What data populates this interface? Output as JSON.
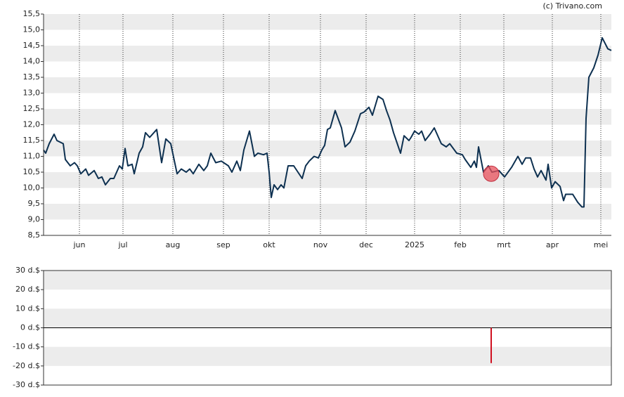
{
  "chart_data": [
    {
      "type": "line",
      "source": "(c) Trivano.com",
      "x": [
        0,
        3,
        8,
        15,
        19,
        28,
        31,
        38,
        44,
        48,
        53,
        60,
        64,
        72,
        78,
        83,
        88,
        95,
        100,
        108,
        112,
        116,
        120,
        126,
        129,
        136,
        141,
        145,
        151,
        161,
        168,
        174,
        181,
        190,
        196,
        203,
        208,
        213,
        221,
        228,
        233,
        238,
        245,
        253,
        263,
        268,
        275,
        280,
        285,
        293,
        300,
        305,
        313,
        318,
        321,
        324,
        328,
        333,
        338,
        342,
        348,
        356,
        362,
        368,
        373,
        378,
        385,
        391,
        396,
        400,
        404,
        408,
        415,
        424,
        429,
        436,
        443,
        451,
        456,
        463,
        468,
        476,
        483,
        488,
        493,
        498,
        508,
        513,
        520,
        523,
        528,
        534,
        538,
        543,
        550,
        556,
        566,
        573,
        578,
        588,
        596,
        600,
        608,
        613,
        616,
        619,
        626,
        633,
        638,
        648,
        656,
        666,
        675,
        681,
        686,
        693,
        698,
        703,
        708,
        715,
        718,
        723,
        728,
        735,
        740,
        743,
        753,
        760,
        766,
        769,
        772,
        776,
        783,
        789,
        795,
        803,
        808
      ],
      "series": [
        {
          "color": "#0d3050",
          "values": [
            11.2,
            11.1,
            11.4,
            11.7,
            11.5,
            11.4,
            10.9,
            10.7,
            10.8,
            10.7,
            10.45,
            10.6,
            10.4,
            10.55,
            10.3,
            10.35,
            10.1,
            10.3,
            10.3,
            10.7,
            10.6,
            11.25,
            10.7,
            10.75,
            10.45,
            11.1,
            11.3,
            11.75,
            11.6,
            11.85,
            10.8,
            11.55,
            11.4,
            10.45,
            10.6,
            10.5,
            10.6,
            10.45,
            10.75,
            10.55,
            10.7,
            11.1,
            10.8,
            10.85,
            10.7,
            10.5,
            10.85,
            10.55,
            11.2,
            11.8,
            11.0,
            11.1,
            11.05,
            11.1,
            10.5,
            9.7,
            10.1,
            9.95,
            10.1,
            10.0,
            10.7,
            10.7,
            10.5,
            10.3,
            10.7,
            10.85,
            11.0,
            10.95,
            11.2,
            11.35,
            11.85,
            11.9,
            12.45,
            11.9,
            11.3,
            11.45,
            11.8,
            12.35,
            12.4,
            12.55,
            12.3,
            12.9,
            12.8,
            12.45,
            12.15,
            11.75,
            11.1,
            11.65,
            11.5,
            11.6,
            11.8,
            11.7,
            11.8,
            11.5,
            11.7,
            11.9,
            11.4,
            11.3,
            11.4,
            11.1,
            11.05,
            10.9,
            10.65,
            10.85,
            10.65,
            11.3,
            10.5,
            10.7,
            10.5,
            10.55,
            10.35,
            10.65,
            11.0,
            10.75,
            10.95,
            10.95,
            10.6,
            10.35,
            10.55,
            10.25,
            10.75,
            10.0,
            10.2,
            10.05,
            9.6,
            9.8,
            9.8,
            9.55,
            9.4,
            9.4,
            12.2,
            13.5,
            13.8,
            14.2,
            14.75,
            14.4,
            14.35
          ]
        }
      ],
      "highlight": {
        "x": 637,
        "y": 10.45,
        "color": "#e8505b"
      },
      "xlim": [
        0,
        808
      ],
      "xticks": [
        {
          "value": 51,
          "label": "jun"
        },
        {
          "value": 113,
          "label": "jul"
        },
        {
          "value": 184,
          "label": "aug"
        },
        {
          "value": 256,
          "label": "sep"
        },
        {
          "value": 321,
          "label": "okt"
        },
        {
          "value": 394,
          "label": "nov"
        },
        {
          "value": 459,
          "label": "dec"
        },
        {
          "value": 528,
          "label": "2025"
        },
        {
          "value": 593,
          "label": "feb"
        },
        {
          "value": 655,
          "label": "mrt"
        },
        {
          "value": 724,
          "label": "apr"
        },
        {
          "value": 793,
          "label": "mei"
        }
      ],
      "ylim": [
        8.5,
        15.5
      ],
      "yticks": [
        {
          "value": 8.5,
          "label": "8,5"
        },
        {
          "value": 9,
          "label": "9,0"
        },
        {
          "value": 9.5,
          "label": "9,5"
        },
        {
          "value": 10,
          "label": "10,0"
        },
        {
          "value": 10.5,
          "label": "10,5"
        },
        {
          "value": 11,
          "label": "11,0"
        },
        {
          "value": 11.5,
          "label": "11,5"
        },
        {
          "value": 12,
          "label": "12,0"
        },
        {
          "value": 12.5,
          "label": "12,5"
        },
        {
          "value": 13,
          "label": "13,0"
        },
        {
          "value": 13.5,
          "label": "13,5"
        },
        {
          "value": 14,
          "label": "14,0"
        },
        {
          "value": 14.5,
          "label": "14,5"
        },
        {
          "value": 15,
          "label": "15,0"
        },
        {
          "value": 15.5,
          "label": "15,5"
        }
      ]
    },
    {
      "type": "bar",
      "x": [
        637
      ],
      "values": [
        -18.5
      ],
      "color": "#d01020",
      "xlim": [
        0,
        808
      ],
      "ylim": [
        -30,
        30
      ],
      "yticks": [
        {
          "value": -30,
          "label": "-30 d.$"
        },
        {
          "value": -20,
          "label": "-20 d.$"
        },
        {
          "value": -10,
          "label": "-10 d.$"
        },
        {
          "value": 0,
          "label": "0 d.$"
        },
        {
          "value": 10,
          "label": "10 d.$"
        },
        {
          "value": 20,
          "label": "20 d.$"
        },
        {
          "value": 30,
          "label": "30 d.$"
        }
      ]
    }
  ]
}
